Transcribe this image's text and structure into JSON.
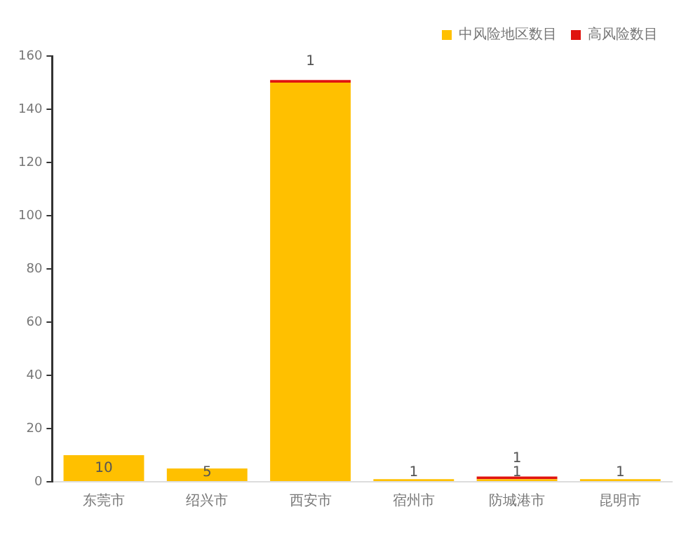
{
  "chart_data": {
    "type": "bar",
    "stacked": true,
    "categories": [
      "东莞市",
      "绍兴市",
      "西安市",
      "宿州市",
      "防城港市",
      "昆明市"
    ],
    "series": [
      {
        "name": "中风险地区数目",
        "color": "#ffc000",
        "values": [
          10,
          5,
          150,
          1,
          1,
          1
        ],
        "value_labels": [
          "10",
          "5",
          null,
          "1",
          "1",
          "1"
        ]
      },
      {
        "name": "高风险数目",
        "color": "#e0140f",
        "values": [
          null,
          null,
          1,
          null,
          1,
          null
        ],
        "value_labels": [
          null,
          null,
          "1",
          null,
          "1",
          null
        ]
      }
    ],
    "ylim": [
      0,
      160
    ],
    "yticks": [
      0,
      20,
      40,
      60,
      80,
      100,
      120,
      140,
      160
    ],
    "grid": false,
    "legend": "top right"
  }
}
